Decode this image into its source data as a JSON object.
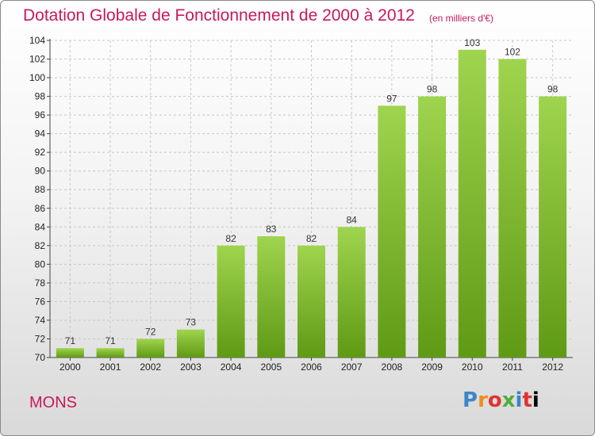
{
  "header": {
    "title": "Dotation Globale de Fonctionnement de 2000 à 2012",
    "unit_note": "(en milliers d'€)"
  },
  "footer": {
    "place": "MONS",
    "brand": [
      "P",
      "r",
      "o",
      "x",
      "i",
      "t",
      "i"
    ]
  },
  "colors": {
    "title": "#c8185b",
    "bar_top": "#9fd44e",
    "bar_bottom": "#5f9a15"
  },
  "chart_data": {
    "type": "bar",
    "title": "Dotation Globale de Fonctionnement de 2000 à 2012",
    "subtitle": "(en milliers d'€)",
    "xlabel": "",
    "ylabel": "",
    "categories": [
      "2000",
      "2001",
      "2002",
      "2003",
      "2004",
      "2005",
      "2006",
      "2007",
      "2008",
      "2009",
      "2010",
      "2011",
      "2012"
    ],
    "values": [
      71,
      71,
      72,
      73,
      82,
      83,
      82,
      84,
      97,
      98,
      103,
      102,
      98
    ],
    "ylim": [
      70,
      104
    ],
    "yticks": [
      70,
      72,
      74,
      76,
      78,
      80,
      82,
      84,
      86,
      88,
      90,
      92,
      94,
      96,
      98,
      100,
      102,
      104
    ],
    "grid": true,
    "legend": "none",
    "data_labels": true
  }
}
